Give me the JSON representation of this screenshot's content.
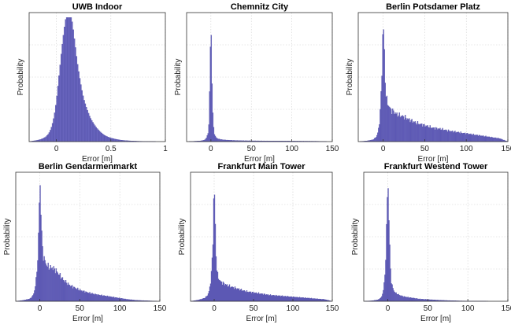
{
  "chart_data": [
    {
      "type": "bar",
      "title": "UWB Indoor",
      "xlabel": "Error [m]",
      "ylabel": "Probability",
      "xlim": [
        -0.25,
        1.0
      ],
      "xticks": [
        0,
        0.5,
        1
      ],
      "xtick_labels": [
        "0",
        "0.5",
        "1"
      ],
      "grid": true,
      "bin_width": 0.01,
      "x": [
        -0.18,
        -0.14,
        -0.1,
        -0.07,
        -0.05,
        -0.03,
        -0.01,
        0.01,
        0.03,
        0.05,
        0.07,
        0.09,
        0.11,
        0.13,
        0.15,
        0.17,
        0.19,
        0.21,
        0.23,
        0.25,
        0.28,
        0.31,
        0.34,
        0.37,
        0.4,
        0.44,
        0.48,
        0.52,
        0.56,
        0.6,
        0.65,
        0.7,
        0.75,
        0.8
      ],
      "y": [
        0.01,
        0.02,
        0.04,
        0.07,
        0.11,
        0.17,
        0.26,
        0.4,
        0.55,
        0.7,
        0.82,
        0.92,
        1.0,
        0.95,
        0.86,
        0.74,
        0.62,
        0.52,
        0.43,
        0.35,
        0.27,
        0.2,
        0.15,
        0.11,
        0.08,
        0.05,
        0.035,
        0.025,
        0.018,
        0.012,
        0.008,
        0.005,
        0.003,
        0.002
      ]
    },
    {
      "type": "bar",
      "title": "Chemnitz City",
      "xlabel": "Error [m]",
      "ylabel": "Probability",
      "xlim": [
        -30,
        150
      ],
      "xticks": [
        0,
        50,
        100,
        150
      ],
      "xtick_labels": [
        "0",
        "50",
        "100",
        "150"
      ],
      "grid": true,
      "bin_width": 1,
      "x": [
        -20,
        -12,
        -8,
        -6,
        -4,
        -3,
        -2,
        -1,
        0,
        1,
        2,
        3,
        4,
        5,
        6,
        8,
        10,
        13,
        17,
        22,
        30,
        40,
        55,
        75,
        100,
        130
      ],
      "y": [
        0.003,
        0.006,
        0.012,
        0.025,
        0.05,
        0.09,
        0.2,
        0.55,
        1.0,
        0.7,
        0.3,
        0.14,
        0.08,
        0.05,
        0.035,
        0.025,
        0.02,
        0.016,
        0.013,
        0.011,
        0.009,
        0.007,
        0.006,
        0.005,
        0.004,
        0.003
      ]
    },
    {
      "type": "bar",
      "title": "Berlin Potsdamer Platz",
      "xlabel": "Error [m]",
      "ylabel": "Probability",
      "xlim": [
        -30,
        150
      ],
      "xticks": [
        0,
        50,
        100,
        150
      ],
      "xtick_labels": [
        "0",
        "50",
        "100",
        "150"
      ],
      "grid": true,
      "bin_width": 1,
      "x": [
        -20,
        -12,
        -8,
        -6,
        -4,
        -2,
        -1,
        0,
        1,
        2,
        3,
        4,
        6,
        8,
        10,
        13,
        16,
        20,
        25,
        30,
        35,
        40,
        50,
        60,
        70,
        80,
        90,
        100,
        110,
        120,
        130,
        140
      ],
      "y": [
        0.005,
        0.015,
        0.04,
        0.08,
        0.18,
        0.45,
        0.7,
        1.0,
        0.82,
        0.58,
        0.42,
        0.34,
        0.3,
        0.27,
        0.25,
        0.24,
        0.22,
        0.21,
        0.2,
        0.18,
        0.165,
        0.15,
        0.13,
        0.11,
        0.1,
        0.085,
        0.075,
        0.065,
        0.055,
        0.045,
        0.035,
        0.025
      ]
    },
    {
      "type": "bar",
      "title": "Berlin Gendarmenmarkt",
      "xlabel": "Error [m]",
      "ylabel": "Probability",
      "xlim": [
        -30,
        150
      ],
      "xticks": [
        0,
        50,
        100,
        150
      ],
      "xtick_labels": [
        "0",
        "50",
        "100",
        "150"
      ],
      "grid": true,
      "bin_width": 1,
      "x": [
        -20,
        -12,
        -8,
        -6,
        -4,
        -2,
        -1,
        0,
        1,
        2,
        3,
        4,
        6,
        8,
        10,
        13,
        16,
        20,
        25,
        30,
        35,
        40,
        50,
        60,
        70,
        80,
        90,
        100,
        110,
        120
      ],
      "y": [
        0.008,
        0.02,
        0.05,
        0.1,
        0.2,
        0.4,
        0.62,
        1.0,
        0.86,
        0.62,
        0.46,
        0.38,
        0.33,
        0.3,
        0.28,
        0.27,
        0.27,
        0.25,
        0.21,
        0.17,
        0.14,
        0.12,
        0.09,
        0.07,
        0.055,
        0.045,
        0.035,
        0.025,
        0.015,
        0.008
      ]
    },
    {
      "type": "bar",
      "title": "Frankfurt Main Tower",
      "xlabel": "Error [m]",
      "ylabel": "Probability",
      "xlim": [
        -30,
        150
      ],
      "xticks": [
        0,
        50,
        100,
        150
      ],
      "xtick_labels": [
        "0",
        "50",
        "100",
        "150"
      ],
      "grid": true,
      "bin_width": 1,
      "x": [
        -20,
        -12,
        -8,
        -6,
        -4,
        -2,
        -1,
        0,
        1,
        2,
        3,
        4,
        6,
        8,
        10,
        13,
        16,
        20,
        25,
        30,
        35,
        40,
        50,
        60,
        70,
        80,
        90,
        100,
        110,
        120,
        130,
        140
      ],
      "y": [
        0.01,
        0.025,
        0.05,
        0.09,
        0.18,
        0.38,
        0.62,
        1.0,
        0.72,
        0.46,
        0.3,
        0.22,
        0.18,
        0.16,
        0.15,
        0.14,
        0.13,
        0.12,
        0.11,
        0.1,
        0.09,
        0.08,
        0.07,
        0.06,
        0.05,
        0.045,
        0.04,
        0.035,
        0.03,
        0.025,
        0.02,
        0.015
      ]
    },
    {
      "type": "bar",
      "title": "Frankfurt Westend Tower",
      "xlabel": "Error [m]",
      "ylabel": "Probability",
      "xlim": [
        -30,
        150
      ],
      "xticks": [
        0,
        50,
        100,
        150
      ],
      "xtick_labels": [
        "0",
        "50",
        "100",
        "150"
      ],
      "grid": true,
      "bin_width": 1,
      "x": [
        -20,
        -12,
        -8,
        -6,
        -4,
        -2,
        -1,
        0,
        1,
        2,
        3,
        4,
        6,
        8,
        10,
        13,
        16,
        20,
        25,
        30,
        35,
        40,
        50,
        60,
        70,
        80,
        90,
        100
      ],
      "y": [
        0.004,
        0.012,
        0.03,
        0.07,
        0.16,
        0.42,
        0.72,
        1.0,
        0.82,
        0.55,
        0.32,
        0.18,
        0.11,
        0.08,
        0.065,
        0.055,
        0.045,
        0.038,
        0.032,
        0.027,
        0.022,
        0.018,
        0.014,
        0.01,
        0.007,
        0.005,
        0.003,
        0.002
      ]
    }
  ]
}
